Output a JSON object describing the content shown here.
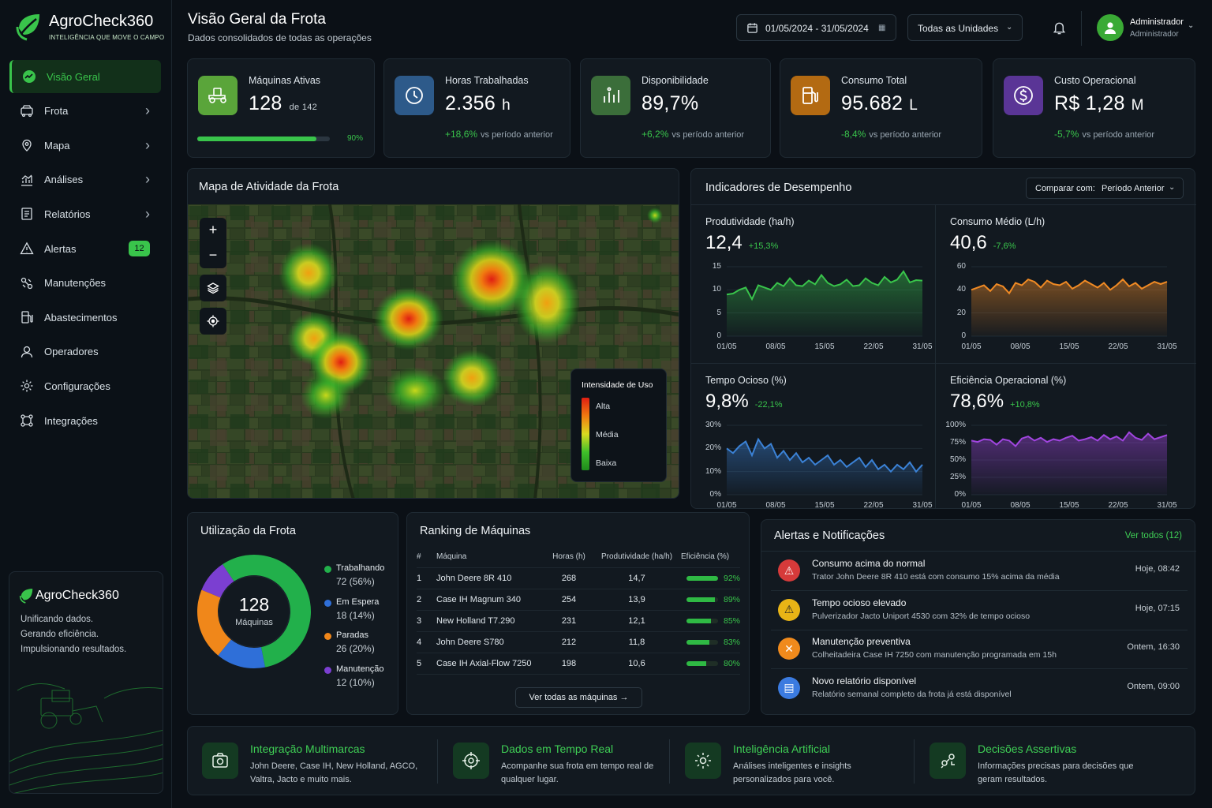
{
  "brand": {
    "name": "AgroCheck360",
    "tagline": "INTELIGÊNCIA QUE MOVE O CAMPO"
  },
  "sidebar": {
    "items": [
      {
        "label": "Visão Geral",
        "icon": "dashboard-icon",
        "active": true
      },
      {
        "label": "Frota",
        "icon": "truck-icon",
        "chevron": true
      },
      {
        "label": "Mapa",
        "icon": "map-icon",
        "chevron": true
      },
      {
        "label": "Análises",
        "icon": "analytics-icon",
        "chevron": true
      },
      {
        "label": "Relatórios",
        "icon": "report-icon",
        "chevron": true
      },
      {
        "label": "Alertas",
        "icon": "warning-icon",
        "badge": "12"
      },
      {
        "label": "Manutenções",
        "icon": "wrench-icon"
      },
      {
        "label": "Abastecimentos",
        "icon": "fuel-icon"
      },
      {
        "label": "Operadores",
        "icon": "user-icon"
      },
      {
        "label": "Configurações",
        "icon": "gear-icon"
      },
      {
        "label": "Integrações",
        "icon": "integration-icon"
      }
    ],
    "promo": {
      "brand": "AgroCheck360",
      "line1": "Unificando dados.",
      "line2": "Gerando eficiência.",
      "line3": "Impulsionando resultados."
    }
  },
  "header": {
    "title": "Visão Geral da Frota",
    "subtitle": "Dados consolidados de todas as operações",
    "date_range": "01/05/2024 - 31/05/2024",
    "unit_select": "Todas as Unidades",
    "user_name": "Administrador",
    "user_role": "Administrador"
  },
  "kpis": [
    {
      "label": "Máquinas Ativas",
      "value": "128",
      "suffix": "de 142",
      "progress_pct": 90,
      "progress_label": "90%",
      "color": "#5aa53a"
    },
    {
      "label": "Horas Trabalhadas",
      "value": "2.356",
      "unit": "h",
      "delta": "+18,6%",
      "delta_text": "vs período anterior",
      "color": "#2d5a8a"
    },
    {
      "label": "Disponibilidade",
      "value": "89,7%",
      "delta": "+6,2%",
      "delta_text": "vs período anterior",
      "color": "#3b6e3a"
    },
    {
      "label": "Consumo Total",
      "value": "95.682",
      "unit": "L",
      "delta": "-8,4%",
      "delta_text": "vs período anterior",
      "color": "#b36a12"
    },
    {
      "label": "Custo Operacional",
      "value": "R$ 1,28",
      "unit": "M",
      "delta": "-5,7%",
      "delta_text": "vs período anterior",
      "color": "#5a3596"
    }
  ],
  "map": {
    "title": "Mapa de Atividade da Frota",
    "legend_title": "Intensidade de Uso",
    "legend_high": "Alta",
    "legend_mid": "Média",
    "legend_low": "Baixa"
  },
  "performance": {
    "title": "Indicadores de Desempenho",
    "compare_label": "Comparar com:",
    "compare_value": "Período Anterior",
    "x_labels": [
      "01/05",
      "08/05",
      "15/05",
      "22/05",
      "31/05"
    ]
  },
  "chart_data": [
    {
      "type": "area",
      "title": "Produtividade (ha/h)",
      "value": "12,4",
      "delta": "+15,3%",
      "ylim": [
        0,
        15
      ],
      "yticks": [
        "15",
        "10",
        "5",
        "0"
      ],
      "color": "#39c44b",
      "values": [
        9,
        9.2,
        10,
        10.5,
        8,
        11,
        10.5,
        10,
        11.5,
        10.8,
        12.5,
        11,
        10.8,
        12,
        11.2,
        13.2,
        11.5,
        10.8,
        11.2,
        12.2,
        10.8,
        11,
        12.5,
        11.5,
        11,
        12.8,
        11.6,
        12.2,
        14,
        11.6,
        12.1,
        12
      ]
    },
    {
      "type": "area",
      "title": "Consumo Médio (L/h)",
      "value": "40,6",
      "delta": "-7,6%",
      "ylim": [
        0,
        60
      ],
      "yticks": [
        "60",
        "40",
        "20",
        "0"
      ],
      "color": "#f08a24",
      "values": [
        40,
        42,
        44,
        39,
        45,
        43,
        37,
        46,
        44,
        49,
        47,
        42,
        48,
        45,
        44,
        47,
        41,
        44,
        48,
        45,
        42,
        46,
        40,
        44,
        49,
        43,
        46,
        41,
        44,
        47,
        45,
        47
      ]
    },
    {
      "type": "area",
      "title": "Tempo Ocioso (%)",
      "value": "9,8%",
      "delta": "-22,1%",
      "ylim": [
        0,
        30
      ],
      "yticks": [
        "30%",
        "20%",
        "10%",
        "0%"
      ],
      "color": "#3b82d6",
      "values": [
        20,
        18,
        21,
        23,
        17,
        24,
        20,
        22,
        16,
        19,
        15,
        18,
        14,
        16,
        13,
        15,
        17,
        13,
        15,
        12,
        14,
        16,
        12,
        15,
        11,
        13,
        10,
        13,
        11,
        14,
        10,
        13
      ]
    },
    {
      "type": "area",
      "title": "Eficiência Operacional (%)",
      "value": "78,6%",
      "delta": "+10,8%",
      "ylim": [
        0,
        100
      ],
      "yticks": [
        "100%",
        "75%",
        "50%",
        "25%",
        "0%"
      ],
      "color": "#a145e0",
      "values": [
        78,
        76,
        80,
        79,
        72,
        80,
        78,
        70,
        81,
        84,
        78,
        82,
        76,
        80,
        78,
        82,
        85,
        78,
        80,
        83,
        78,
        86,
        80,
        84,
        78,
        90,
        82,
        79,
        88,
        80,
        83,
        86
      ]
    },
    {
      "type": "pie",
      "title": "Utilização da Frota",
      "center_value": "128",
      "center_label": "Máquinas",
      "categories": [
        "Trabalhando",
        "Em Espera",
        "Paradas",
        "Manutenção"
      ],
      "values": [
        72,
        18,
        26,
        12
      ],
      "labels": [
        "72 (56%)",
        "18 (14%)",
        "26 (20%)",
        "12 (10%)"
      ],
      "colors": [
        "#22b04b",
        "#2f6fd8",
        "#f0871a",
        "#7b3fd1"
      ]
    }
  ],
  "ranking": {
    "title": "Ranking de Máquinas",
    "headers": [
      "#",
      "Máquina",
      "Horas (h)",
      "Produtividade (ha/h)",
      "Eficiência (%)"
    ],
    "rows": [
      {
        "n": "1",
        "machine": "John Deere 8R 410",
        "hours": "268",
        "prod": "14,7",
        "eff": 92,
        "eff_label": "92%"
      },
      {
        "n": "2",
        "machine": "Case IH Magnum 340",
        "hours": "254",
        "prod": "13,9",
        "eff": 89,
        "eff_label": "89%"
      },
      {
        "n": "3",
        "machine": "New Holland T7.290",
        "hours": "231",
        "prod": "12,1",
        "eff": 85,
        "eff_label": "85%"
      },
      {
        "n": "4",
        "machine": "John Deere S780",
        "hours": "212",
        "prod": "11,8",
        "eff": 83,
        "eff_label": "83%"
      },
      {
        "n": "5",
        "machine": "Case IH Axial-Flow 7250",
        "hours": "198",
        "prod": "10,6",
        "eff": 80,
        "eff_label": "80%"
      }
    ],
    "view_all": "Ver todas as máquinas"
  },
  "alerts": {
    "title": "Alertas e Notificações",
    "view_all": "Ver todos (12)",
    "items": [
      {
        "title": "Consumo acima do normal",
        "desc": "Trator John Deere 8R 410 está com consumo 15% acima da média",
        "time": "Hoje, 08:42",
        "icon": "alert-triangle-icon",
        "color": "#d63a3a",
        "glyph": "⚠"
      },
      {
        "title": "Tempo ocioso elevado",
        "desc": "Pulverizador Jacto Uniport 4530 com 32% de tempo ocioso",
        "time": "Hoje, 07:15",
        "icon": "warning-icon",
        "color": "#e8b416",
        "glyph": "⚠"
      },
      {
        "title": "Manutenção preventiva",
        "desc": "Colheitadeira Case IH 7250 com manutenção programada em 15h",
        "time": "Ontem, 16:30",
        "icon": "wrench-icon",
        "color": "#f08a1c",
        "glyph": "✕"
      },
      {
        "title": "Novo relatório disponível",
        "desc": "Relatório semanal completo da frota já está disponível",
        "time": "Ontem, 09:00",
        "icon": "report-icon",
        "color": "#3b7be0",
        "glyph": "▤"
      }
    ]
  },
  "features": [
    {
      "title": "Integração Multimarcas",
      "desc": "John Deere, Case IH, New Holland, AGCO, Valtra, Jacto e muito mais.",
      "icon": "camera-sync-icon"
    },
    {
      "title": "Dados em Tempo Real",
      "desc": "Acompanhe sua frota em tempo real de qualquer lugar.",
      "icon": "crosshair-icon"
    },
    {
      "title": "Inteligência Artificial",
      "desc": "Análises inteligentes e insights personalizados para você.",
      "icon": "gear-icon"
    },
    {
      "title": "Decisões Assertivas",
      "desc": "Informações precisas para decisões que geram resultados.",
      "icon": "decision-icon"
    }
  ]
}
